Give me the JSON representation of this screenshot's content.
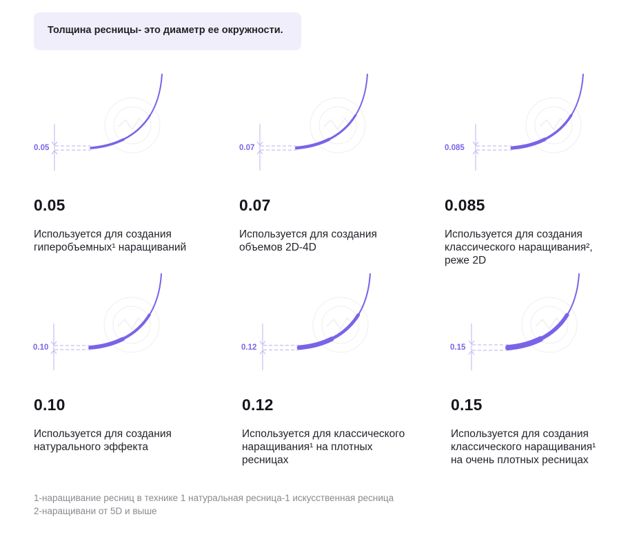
{
  "callout_text": "Толщина ресницы- это диаметр ее окружности.",
  "accent_color": "#7b63e8",
  "watermark_text": "Lash brand logo",
  "items": [
    {
      "label": "0.05",
      "title": "0.05",
      "description": "Используется для создания\nгиперобъемных¹ наращиваний",
      "thickness": 0.05
    },
    {
      "label": "0.07",
      "title": "0.07",
      "description": "Используется для создания\nобъемов 2D-4D",
      "thickness": 0.07
    },
    {
      "label": "0.085",
      "title": "0.085",
      "description": "Используется для создания\nклассического наращивания²,\nреже 2D",
      "thickness": 0.085
    },
    {
      "label": "0.10",
      "title": "0.10",
      "description": "Используется для создания\nнатурального эффекта",
      "thickness": 0.1
    },
    {
      "label": "0.12",
      "title": "0.12",
      "description": "Используется для классического\nнаращивания¹ на плотных\nресницах",
      "thickness": 0.12
    },
    {
      "label": "0.15",
      "title": "0.15",
      "description": "Используется для создания\nклассического наращивания¹\nна очень плотных ресницах",
      "thickness": 0.15
    }
  ],
  "footnotes": [
    "1-наращивание ресниц в технике 1 натуральная ресница-1 искусственная ресница",
    "2-наращивани от 5D и выше"
  ]
}
